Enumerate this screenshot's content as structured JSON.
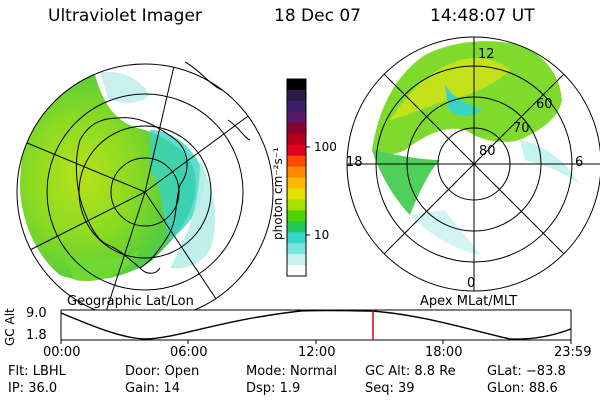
{
  "header": {
    "instrument": "Ultraviolet Imager",
    "date": "18 Dec 07",
    "time": "14:48:07 UT"
  },
  "colorbar": {
    "unit_label": "photon cm⁻²s⁻¹",
    "ticks": [
      "100",
      "10"
    ],
    "colors": [
      "#000000",
      "#2a1a4a",
      "#3b1f6b",
      "#5a1a6a",
      "#8a0030",
      "#b4001c",
      "#e0001e",
      "#ff4a00",
      "#ff8a00",
      "#ffb800",
      "#e8e000",
      "#a8e000",
      "#4fd400",
      "#22c855",
      "#35d6c8",
      "#7be6e0",
      "#c6f2f0",
      "#ffffff"
    ]
  },
  "left_panel": {
    "label": "Geographic Lat/Lon"
  },
  "right_panel": {
    "label": "Apex MLat/MLT",
    "lat_labels": [
      "60",
      "70",
      "80"
    ],
    "mlt_labels": [
      "12",
      "18",
      "6",
      "0"
    ]
  },
  "timeline": {
    "y_label": "GC Alt",
    "y_ticks": [
      "9.0",
      "1.8"
    ],
    "x_ticks": [
      "00:00",
      "06:00",
      "12:00",
      "18:00",
      "23:59"
    ],
    "marker_color": "#ff0000"
  },
  "info": {
    "row1": [
      {
        "label": "Flt:",
        "value": "LBHL"
      },
      {
        "label": "Door:",
        "value": "Open"
      },
      {
        "label": "Mode:",
        "value": "Normal"
      },
      {
        "label": "GC Alt:",
        "value": "8.8 Re"
      },
      {
        "label": "GLat:",
        "value": "−83.8"
      }
    ],
    "row2": [
      {
        "label": "IP:",
        "value": "36.0"
      },
      {
        "label": "Gain:",
        "value": "14"
      },
      {
        "label": "Dsp:",
        "value": "1.9"
      },
      {
        "label": "Seq:",
        "value": "39"
      },
      {
        "label": "GLon:",
        "value": "88.6"
      }
    ]
  },
  "palette": {
    "aurora_green": "#6fd832",
    "aurora_yellow": "#c6e21a",
    "aurora_cyan": "#3ad3c4",
    "marker_red": "#e00000"
  }
}
